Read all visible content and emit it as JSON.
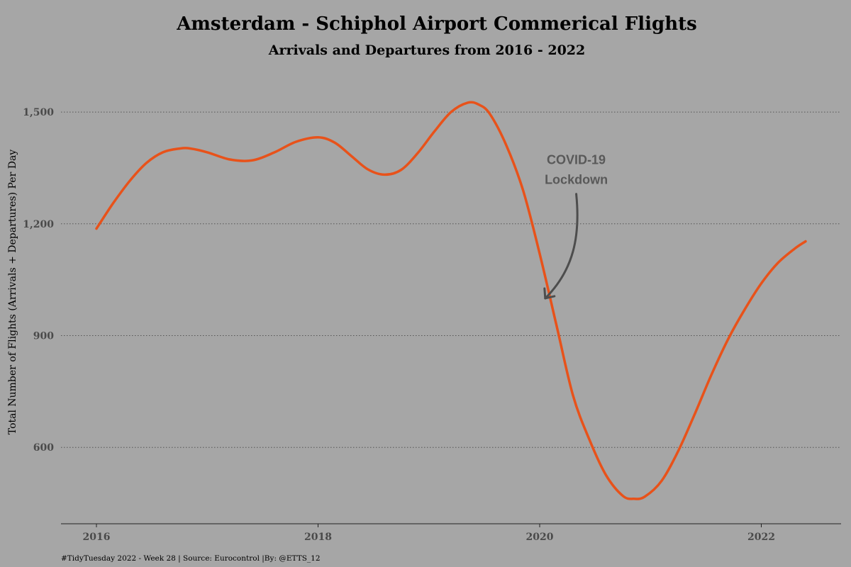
{
  "chart_data": {
    "type": "line",
    "title": "Amsterdam - Schiphol Airport Commerical Flights",
    "subtitle": "Arrivals and Departures from 2016 - 2022",
    "xlabel": "",
    "ylabel": "Total Number of Flights (Arrivals + Departures) Per Day",
    "xlim": [
      2015.68,
      2022.72
    ],
    "ylim": [
      395,
      1620
    ],
    "x_ticks": [
      2016,
      2018,
      2020,
      2022
    ],
    "x_tick_labels": [
      "2016",
      "2018",
      "2020",
      "2022"
    ],
    "y_ticks": [
      600,
      900,
      1200,
      1500
    ],
    "y_tick_labels": [
      "600",
      "900",
      "1,200",
      "1,500"
    ],
    "grid": "horizontal dotted",
    "line_color": "#e8521a",
    "series": [
      {
        "x": [
          2016.0,
          2016.15,
          2016.3,
          2016.45,
          2016.6,
          2016.75,
          2016.85,
          2017.0,
          2017.2,
          2017.4,
          2017.6,
          2017.8,
          2018.0,
          2018.15,
          2018.3,
          2018.45,
          2018.6,
          2018.75,
          2018.9,
          2019.05,
          2019.2,
          2019.35,
          2019.45,
          2019.55,
          2019.7,
          2019.85,
          2020.0,
          2020.15,
          2020.3,
          2020.45,
          2020.6,
          2020.75,
          2020.85,
          2020.95,
          2021.1,
          2021.25,
          2021.4,
          2021.55,
          2021.7,
          2021.85,
          2022.0,
          2022.15,
          2022.3,
          2022.4
        ],
        "y": [
          1187,
          1255,
          1315,
          1363,
          1392,
          1402,
          1402,
          1392,
          1373,
          1370,
          1391,
          1420,
          1432,
          1418,
          1382,
          1346,
          1332,
          1345,
          1390,
          1448,
          1500,
          1525,
          1520,
          1495,
          1410,
          1290,
          1120,
          930,
          740,
          620,
          525,
          470,
          462,
          468,
          510,
          590,
          690,
          795,
          890,
          970,
          1040,
          1095,
          1133,
          1153
        ]
      }
    ],
    "annotations": [
      {
        "text_lines": [
          "COVID-19",
          "Lockdown"
        ],
        "points_to": {
          "x": 2020.05,
          "y": 1000
        }
      }
    ],
    "caption": "#TidyTuesday 2022 - Week 28 | Source: Eurocontrol |By: @ETTS_12"
  }
}
